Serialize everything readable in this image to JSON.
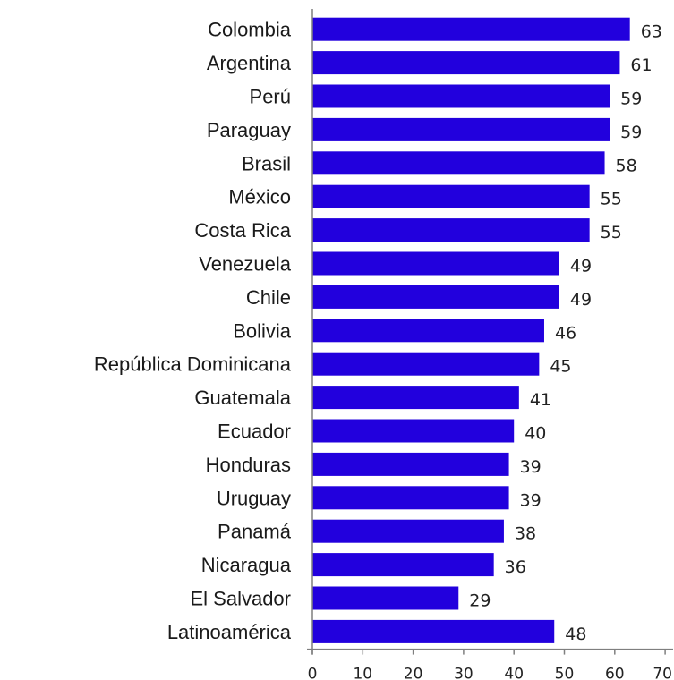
{
  "chart_data": {
    "type": "bar",
    "orientation": "horizontal",
    "categories": [
      "Colombia",
      "Argentina",
      "Perú",
      "Paraguay",
      "Brasil",
      "México",
      "Costa Rica",
      "Venezuela",
      "Chile",
      "Bolivia",
      "República Dominicana",
      "Guatemala",
      "Ecuador",
      "Honduras",
      "Uruguay",
      "Panamá",
      "Nicaragua",
      "El Salvador",
      "Latinoamérica"
    ],
    "values": [
      63,
      61,
      59,
      59,
      58,
      55,
      55,
      49,
      49,
      46,
      45,
      41,
      40,
      39,
      39,
      38,
      36,
      29,
      48
    ],
    "xlim": [
      0,
      70
    ],
    "xticks": [
      0,
      10,
      20,
      30,
      40,
      50,
      60,
      70
    ],
    "title": "",
    "xlabel": "",
    "ylabel": "",
    "bar_color": "#2200dd",
    "data_labels": true,
    "grid": false,
    "legend": "none"
  }
}
